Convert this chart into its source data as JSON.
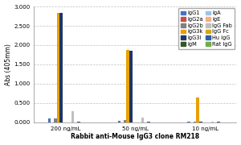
{
  "title": "Rabbit anti-Mouse IgG3 clone RM218",
  "ylabel": "Abs (405mm)",
  "groups": [
    "200 ng/mL",
    "50 ng/mL",
    "10 ng/mL"
  ],
  "series": [
    {
      "label": "IgG1",
      "color": "#4472C4",
      "values": [
        0.09,
        0.03,
        0.01
      ]
    },
    {
      "label": "IgG2a",
      "color": "#C0504D",
      "values": [
        0.005,
        0.005,
        0.005
      ]
    },
    {
      "label": "IgG2b",
      "color": "#808080",
      "values": [
        0.09,
        0.06,
        0.01
      ]
    },
    {
      "label": "IgG3k",
      "color": "#E8A000",
      "values": [
        2.84,
        1.87,
        0.64
      ]
    },
    {
      "label": "IgG3l",
      "color": "#1F3864",
      "values": [
        2.83,
        1.85,
        0.02
      ]
    },
    {
      "label": "IgM",
      "color": "#375623",
      "values": [
        0.005,
        0.005,
        0.005
      ]
    },
    {
      "label": "IgA",
      "color": "#9DC3E6",
      "values": [
        0.005,
        0.005,
        0.005
      ]
    },
    {
      "label": "IgE",
      "color": "#F4B183",
      "values": [
        0.005,
        0.005,
        0.005
      ]
    },
    {
      "label": "IgG Fab",
      "color": "#BFBFBF",
      "values": [
        0.28,
        0.12,
        0.02
      ]
    },
    {
      "label": "IgG Fc",
      "color": "#D6A800",
      "values": [
        0.005,
        0.005,
        0.005
      ]
    },
    {
      "label": "Hu IgG",
      "color": "#2E5FA3",
      "values": [
        0.02,
        0.02,
        0.01
      ]
    },
    {
      "label": "Rat IgG",
      "color": "#70AD47",
      "values": [
        0.005,
        0.005,
        0.005
      ]
    }
  ],
  "legend_order": [
    0,
    1,
    2,
    3,
    4,
    5,
    6,
    7,
    8,
    9,
    10,
    11
  ],
  "ylim": [
    0.0,
    3.0
  ],
  "yticks": [
    0.0,
    0.5,
    1.0,
    1.5,
    2.0,
    2.5,
    3.0
  ],
  "ytick_labels": [
    "0.000",
    "0.500",
    "1.000",
    "1.500",
    "2.000",
    "2.500",
    "3.000"
  ],
  "background_color": "#FFFFFF",
  "grid_color": "#C0C0C0",
  "title_fontsize": 5.5,
  "axis_fontsize": 5.5,
  "tick_fontsize": 5.0,
  "legend_fontsize": 4.8
}
